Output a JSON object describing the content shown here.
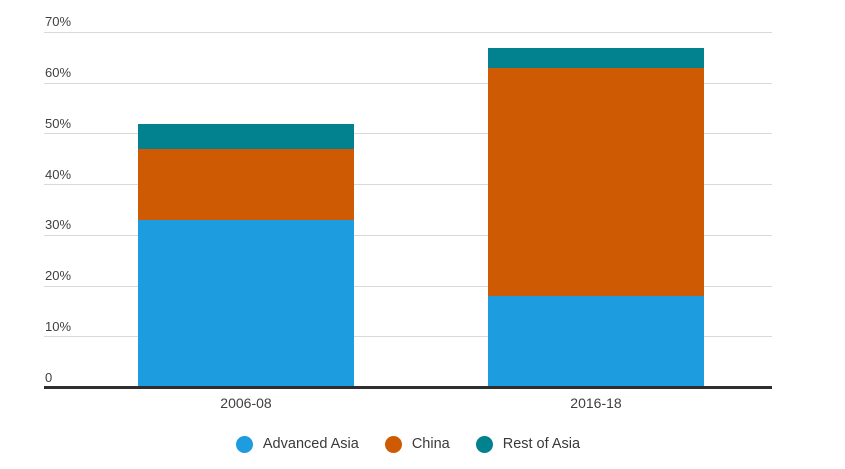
{
  "chart_data": {
    "type": "bar",
    "stacked": true,
    "title": "",
    "xlabel": "",
    "ylabel": "",
    "categories": [
      "2006-08",
      "2016-18"
    ],
    "series": [
      {
        "name": "Advanced Asia",
        "color": "#1d9de0",
        "values": [
          33,
          18
        ]
      },
      {
        "name": "China",
        "color": "#ce5b04",
        "values": [
          14,
          45
        ]
      },
      {
        "name": "Rest of Asia",
        "color": "#02818f",
        "values": [
          5,
          4
        ]
      }
    ],
    "stack_totals": [
      52,
      67
    ],
    "ylim": [
      0,
      70
    ],
    "y_ticks": [
      {
        "label": "70%",
        "value": 70
      },
      {
        "label": "60%",
        "value": 60
      },
      {
        "label": "50%",
        "value": 50
      },
      {
        "label": "40%",
        "value": 40
      },
      {
        "label": "30%",
        "value": 30
      },
      {
        "label": "20%",
        "value": 20
      },
      {
        "label": "10%",
        "value": 10
      },
      {
        "label": "0",
        "value": 0
      }
    ],
    "grid": true,
    "legend_position": "bottom",
    "colors": {
      "gridline": "#d9d9d9",
      "zero_axis": "#2e2e2e",
      "text": "#3f3f3f"
    }
  }
}
